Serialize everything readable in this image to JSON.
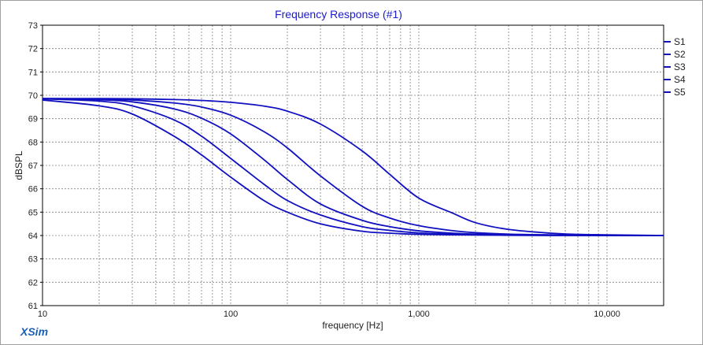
{
  "chart_data": {
    "type": "line",
    "title": "Frequency Response (#1)",
    "xlabel": "frequency [Hz]",
    "ylabel": "dBSPL",
    "x_scale": "log",
    "xlim": [
      10,
      20000
    ],
    "ylim": [
      61,
      73
    ],
    "x_tick_labels": [
      {
        "value": 10,
        "label": "10"
      },
      {
        "value": 100,
        "label": "100"
      },
      {
        "value": 1000,
        "label": "1,000"
      },
      {
        "value": 10000,
        "label": "10,000"
      }
    ],
    "y_ticks": [
      61,
      62,
      63,
      64,
      65,
      66,
      67,
      68,
      69,
      70,
      71,
      72,
      73
    ],
    "grid": true,
    "legend_position": "right",
    "series_color": "#1010c0",
    "x": [
      10,
      20,
      30,
      50,
      70,
      100,
      150,
      200,
      300,
      500,
      700,
      1000,
      1500,
      2000,
      3000,
      5000,
      7000,
      10000,
      20000
    ],
    "series": [
      {
        "name": "S1",
        "values": [
          69.86,
          69.86,
          69.85,
          69.82,
          69.78,
          69.7,
          69.54,
          69.32,
          68.77,
          67.62,
          66.62,
          65.6,
          64.97,
          64.55,
          64.26,
          64.1,
          64.05,
          64.03,
          64.0
        ]
      },
      {
        "name": "S2",
        "values": [
          69.86,
          69.84,
          69.8,
          69.67,
          69.5,
          69.15,
          68.45,
          67.75,
          66.55,
          65.25,
          64.75,
          64.42,
          64.21,
          64.12,
          64.06,
          64.03,
          64.02,
          64.01,
          64.0
        ]
      },
      {
        "name": "S3",
        "values": [
          69.86,
          69.81,
          69.72,
          69.42,
          69.02,
          68.35,
          67.25,
          66.4,
          65.35,
          64.65,
          64.38,
          64.2,
          64.1,
          64.06,
          64.03,
          64.02,
          64.01,
          64.0,
          64.0
        ]
      },
      {
        "name": "S4",
        "values": [
          69.85,
          69.75,
          69.55,
          68.95,
          68.25,
          67.3,
          66.2,
          65.5,
          64.88,
          64.38,
          64.22,
          64.11,
          64.06,
          64.03,
          64.02,
          64.01,
          64.0,
          64.0,
          64.0
        ]
      },
      {
        "name": "S5",
        "values": [
          69.8,
          69.55,
          69.2,
          68.25,
          67.45,
          66.5,
          65.5,
          65.0,
          64.5,
          64.18,
          64.1,
          64.05,
          64.03,
          64.02,
          64.01,
          64.0,
          64.0,
          64.0,
          64.0
        ]
      }
    ]
  },
  "branding": {
    "text": "XSim"
  }
}
